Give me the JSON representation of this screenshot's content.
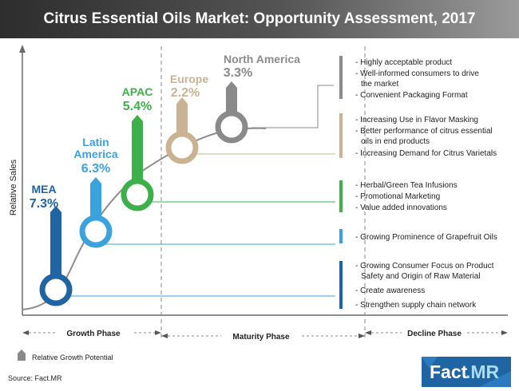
{
  "title": "Citrus Essential Oils Market: Opportunity Assessment, 2017",
  "chart_data": {
    "type": "line",
    "title": "Citrus Essential Oils Market: Opportunity Assessment, 2017",
    "ylabel": "Relative Sales",
    "xlabel": "",
    "x_categories": [
      "Growth Phase",
      "Maturity Phase",
      "Decline Phase"
    ],
    "regions": [
      {
        "name": "MEA",
        "value_label": "7.3%",
        "value": 7.3,
        "color": "#1f64a3"
      },
      {
        "name": "Latin America",
        "value_label": "6.3%",
        "value": 6.3,
        "color": "#3aa3de"
      },
      {
        "name": "APAC",
        "value_label": "5.4%",
        "value": 5.4,
        "color": "#3db049"
      },
      {
        "name": "Europe",
        "value_label": "2.2%",
        "value": 2.2,
        "color": "#c9b393"
      },
      {
        "name": "North America",
        "value_label": "3.3%",
        "value": 3.3,
        "color": "#8a8a8a"
      }
    ],
    "annotations": [
      {
        "region": "North America",
        "color": "#8a8a8a",
        "items": [
          "Highly acceptable product",
          "Well-informed consumers to drive the market",
          "Convenient Packaging Format"
        ]
      },
      {
        "region": "Europe",
        "color": "#c9b393",
        "items": [
          "Increasing Use in Flavor Masking",
          "Better performance of citrus essential oils in end products",
          "Increasing Demand for Citrus Varietals"
        ]
      },
      {
        "region": "APAC",
        "color": "#3db049",
        "items": [
          "Herbal/Green Tea Infusions",
          "Promotional Marketing",
          "Value added innovations"
        ]
      },
      {
        "region": "Latin America",
        "color": "#3aa3de",
        "items": [
          "Growing Prominence of Grapefruit Oils"
        ]
      },
      {
        "region": "MEA",
        "color": "#1f64a3",
        "items": [
          "Growing Consumer Focus on Product Safety and Origin of Raw Material",
          "Create awareness",
          "Strengthen supply chain network"
        ]
      }
    ],
    "legend": "Relative Growth Potential"
  },
  "region_labels": {
    "mea": {
      "name": "MEA",
      "value": "7.3%"
    },
    "latam": {
      "line1": "Latin",
      "line2": "America",
      "value": "6.3%"
    },
    "apac": {
      "name": "APAC",
      "value": "5.4%"
    },
    "europe": {
      "name": "Europe",
      "value": "2.2%"
    },
    "na": {
      "name": "North America",
      "value": "3.3%"
    }
  },
  "bullets": {
    "na": [
      "- Highly acceptable product",
      "- Well-informed consumers to drive",
      "the market",
      "- Convenient Packaging Format"
    ],
    "eu": [
      "- Increasing Use in Flavor Masking",
      "- Better performance of citrus essential",
      "oils in end products",
      "- Increasing Demand for Citrus Varietals"
    ],
    "apac": [
      "- Herbal/Green Tea Infusions",
      "- Promotional Marketing",
      "- Value added innovations"
    ],
    "latam": [
      "- Growing Prominence of Grapefruit Oils"
    ],
    "mea": [
      "- Growing Consumer Focus on Product",
      "Safety and Origin of Raw Material",
      "- Create awareness",
      "- Strengthen supply chain network"
    ]
  },
  "phases": {
    "growth": "Growth Phase",
    "maturity": "Maturity Phase",
    "decline": "Decline Phase"
  },
  "legend_label": "Relative Growth Potential",
  "source": "Source: Fact.MR",
  "logo": {
    "part1": "Fact",
    "part2": ".MR"
  },
  "colors": {
    "mea": "#1f64a3",
    "latam": "#3aa3de",
    "apac": "#3db049",
    "europe": "#c9b393",
    "na": "#8a8a8a",
    "logo_bg": "#1f64a3",
    "logo_accent": "#3aa3de"
  }
}
